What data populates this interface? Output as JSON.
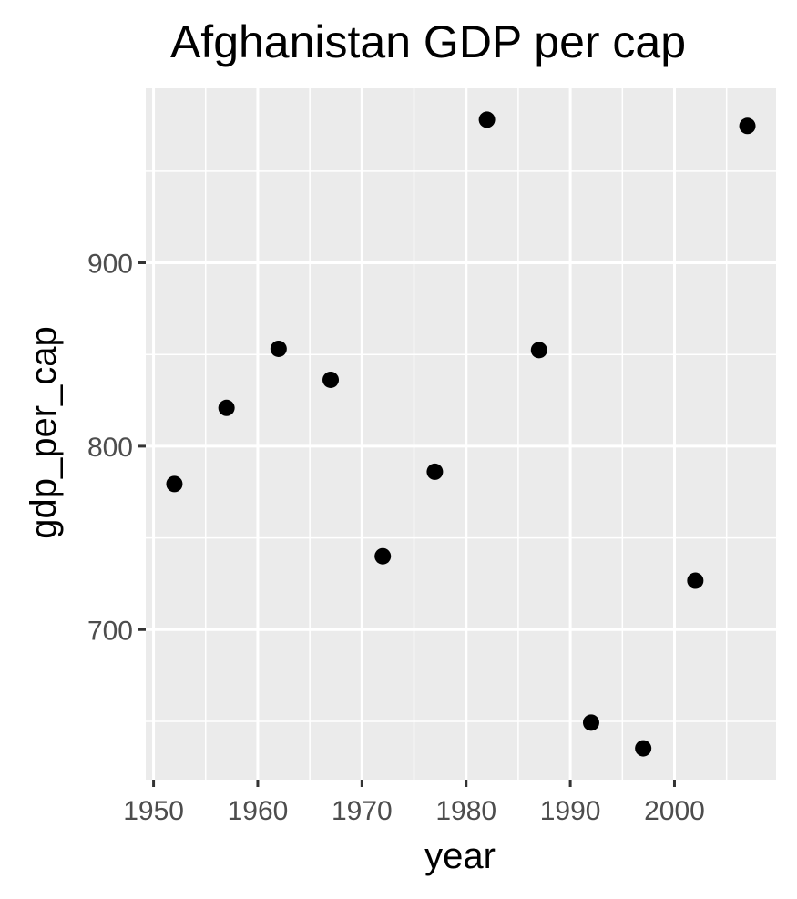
{
  "chart_data": {
    "type": "scatter",
    "title": "Afghanistan GDP per cap",
    "xlabel": "year",
    "ylabel": "gdp_per_cap",
    "x": [
      1952,
      1957,
      1962,
      1967,
      1972,
      1977,
      1982,
      1987,
      1992,
      1997,
      2002,
      2007
    ],
    "y": [
      779.4,
      820.9,
      853.1,
      836.2,
      740.0,
      786.1,
      978.0,
      852.4,
      649.3,
      635.3,
      726.7,
      974.6
    ],
    "x_ticks": [
      1950,
      1960,
      1970,
      1980,
      1990,
      2000
    ],
    "y_ticks": [
      700,
      800,
      900
    ],
    "xlim": [
      1949.25,
      2009.75
    ],
    "ylim": [
      618.2,
      995.1
    ],
    "grid": true,
    "legend": "none",
    "point_color": "#000000",
    "panel_color": "#ebebeb"
  }
}
